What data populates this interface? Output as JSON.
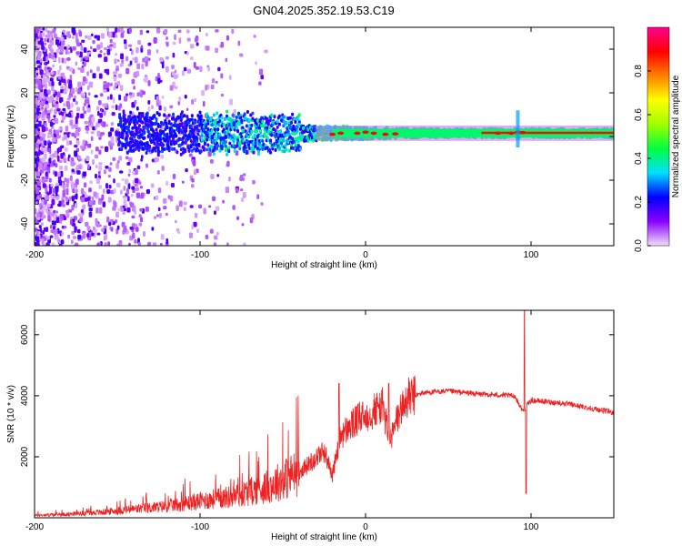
{
  "title": "GN04.2025.352.19.53.C19",
  "chart_data": [
    {
      "type": "heatmap",
      "xlabel": "Height of straight line (km)",
      "ylabel": "Frequency (Hz)",
      "xlim": [
        -200,
        150
      ],
      "ylim": [
        -50,
        50
      ],
      "xticks": [
        -200,
        -100,
        0,
        100
      ],
      "yticks": [
        -40,
        -20,
        0,
        20,
        40
      ],
      "colorbar": {
        "label": "Normalized spectral amplitude",
        "range": [
          0,
          1
        ],
        "ticks": [
          0.0,
          0.2,
          0.4,
          0.6,
          0.8
        ],
        "colors": [
          "#f2e0f8",
          "#8a00ff",
          "#0000ff",
          "#00e0ff",
          "#00ff40",
          "#a0ff00",
          "#ffff00",
          "#ff8000",
          "#ff0000",
          "#ff0090"
        ]
      },
      "band": {
        "center_hz": 1.5,
        "half_width_start_hz": 6,
        "half_width_end_hz": 2,
        "noise_region_end_km": -140,
        "band_start_km": -150,
        "spike_km": 92
      }
    },
    {
      "type": "line",
      "xlabel": "Height of straight line (km)",
      "ylabel": "SNR (10 * v/v)",
      "xlim": [
        -200,
        150
      ],
      "ylim": [
        0,
        6800
      ],
      "xticks": [
        -200,
        -100,
        0,
        100
      ],
      "yticks": [
        2000,
        4000,
        6000
      ],
      "color": "#ee2222",
      "profile": [
        [
          -200,
          80
        ],
        [
          -180,
          120
        ],
        [
          -160,
          180
        ],
        [
          -140,
          280
        ],
        [
          -120,
          380
        ],
        [
          -100,
          550
        ],
        [
          -80,
          700
        ],
        [
          -60,
          1000
        ],
        [
          -40,
          1500
        ],
        [
          -25,
          2200
        ],
        [
          -20,
          1400
        ],
        [
          -15,
          2700
        ],
        [
          -5,
          3200
        ],
        [
          5,
          3500
        ],
        [
          10,
          3700
        ],
        [
          15,
          2500
        ],
        [
          20,
          3400
        ],
        [
          25,
          3900
        ],
        [
          35,
          4100
        ],
        [
          50,
          4150
        ],
        [
          70,
          4050
        ],
        [
          90,
          4000
        ],
        [
          95,
          3500
        ],
        [
          100,
          3850
        ],
        [
          120,
          3750
        ],
        [
          150,
          3450
        ]
      ],
      "spikes": [
        [
          -16,
          4400
        ],
        [
          14,
          4400
        ],
        [
          96,
          6800
        ],
        [
          97,
          800
        ]
      ]
    }
  ]
}
